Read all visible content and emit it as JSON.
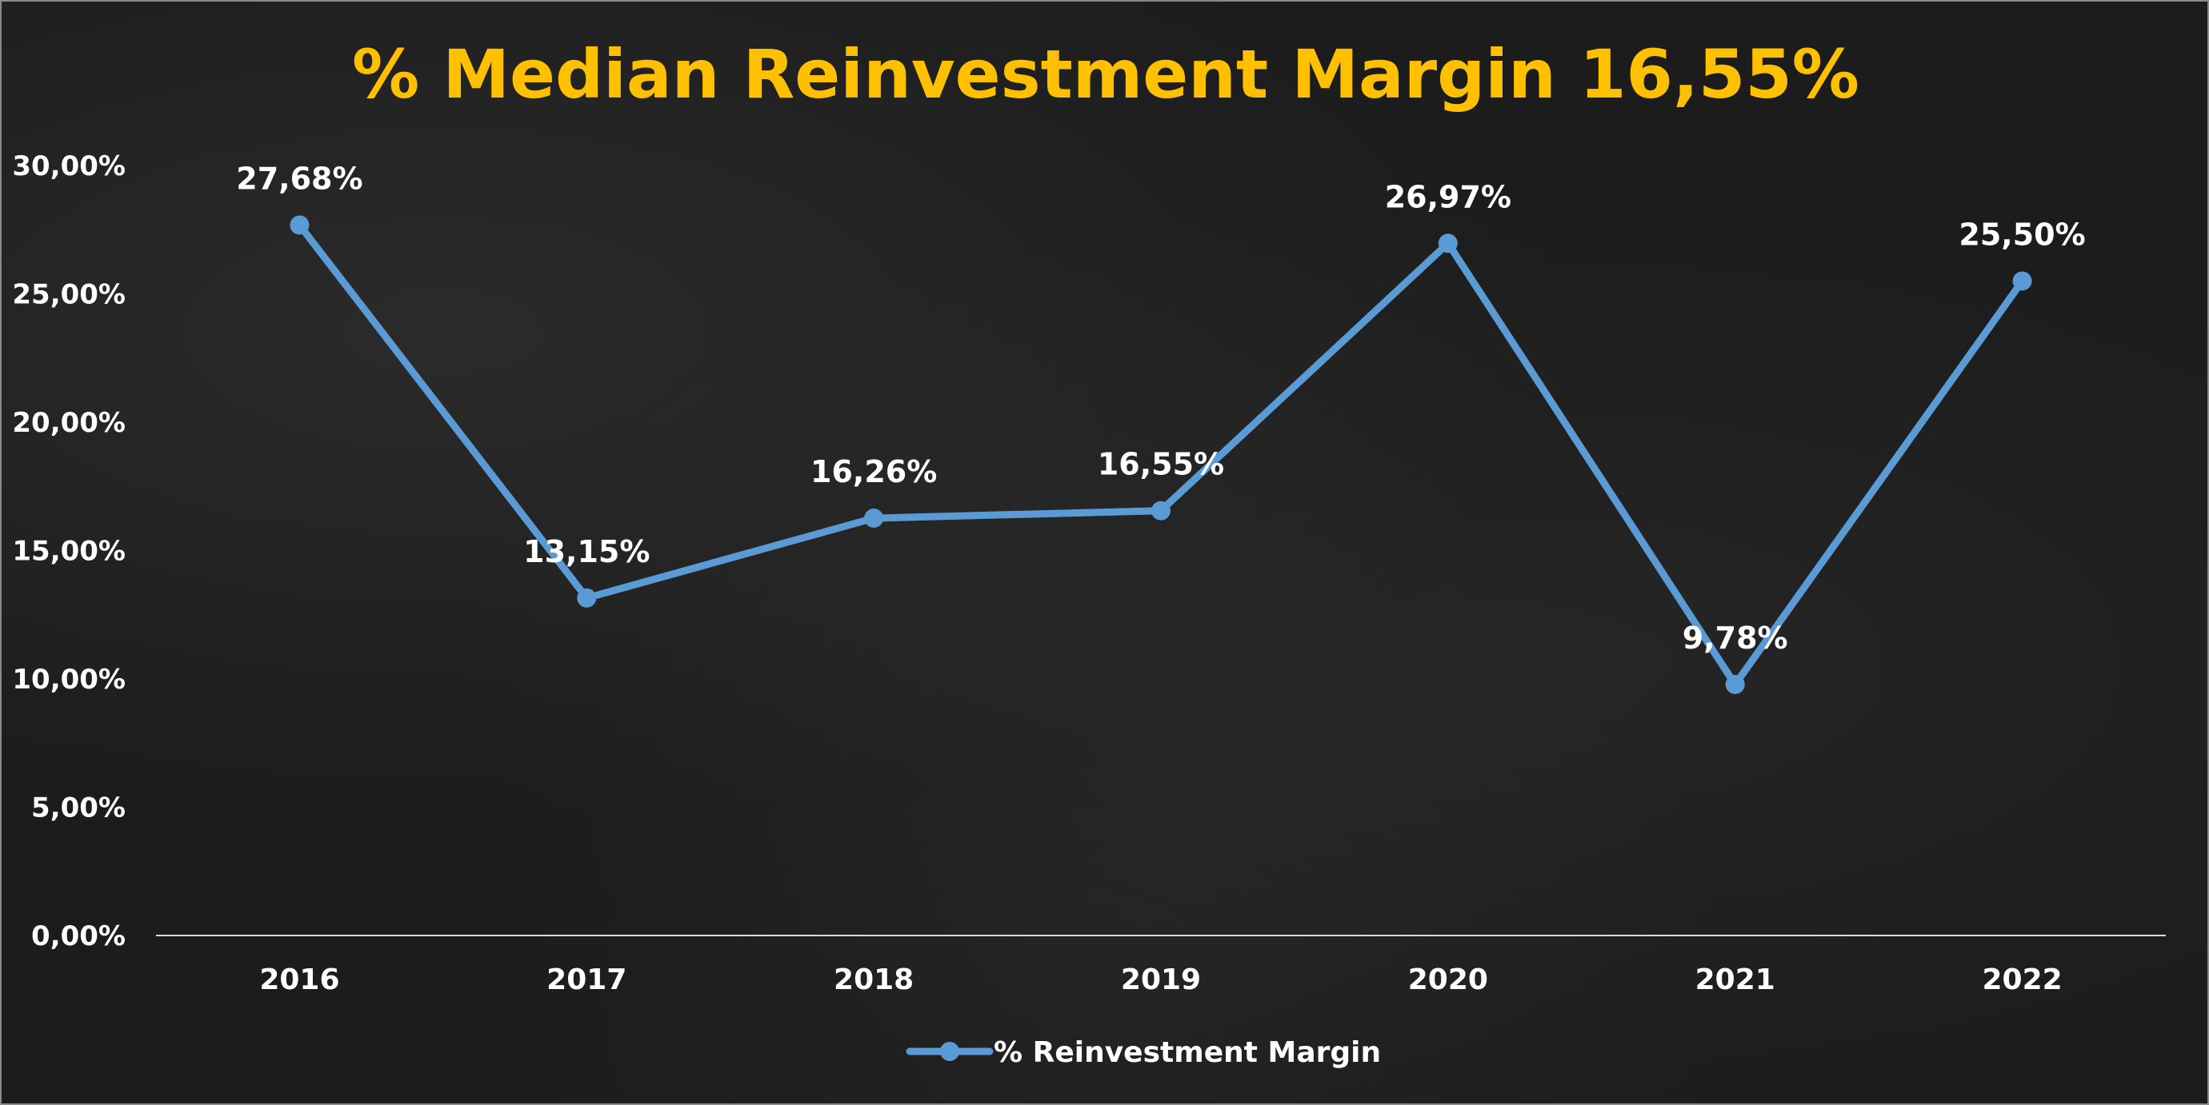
{
  "colors": {
    "background": "#1c1c1c",
    "title": "#FFC000",
    "line": "#5B9BD5",
    "text": "#ffffff",
    "axis": "#d9d9d9"
  },
  "chart_data": {
    "type": "line",
    "title": "% Median Reinvestment Margin 16,55%",
    "categories": [
      "2016",
      "2017",
      "2018",
      "2019",
      "2020",
      "2021",
      "2022"
    ],
    "series": [
      {
        "name": "% Reinvestment Margin",
        "values": [
          27.68,
          13.15,
          16.26,
          16.55,
          26.97,
          9.78,
          25.5
        ],
        "labels": [
          "27,68%",
          "13,15%",
          "16,26%",
          "16,55%",
          "26,97%",
          "9,78%",
          "25,50%"
        ]
      }
    ],
    "ylim": [
      0,
      30
    ],
    "yticks": [
      "0,00%",
      "5,00%",
      "10,00%",
      "15,00%",
      "20,00%",
      "25,00%",
      "30,00%"
    ],
    "xlabel": "",
    "ylabel": "",
    "grid": false,
    "legend": "bottom"
  }
}
